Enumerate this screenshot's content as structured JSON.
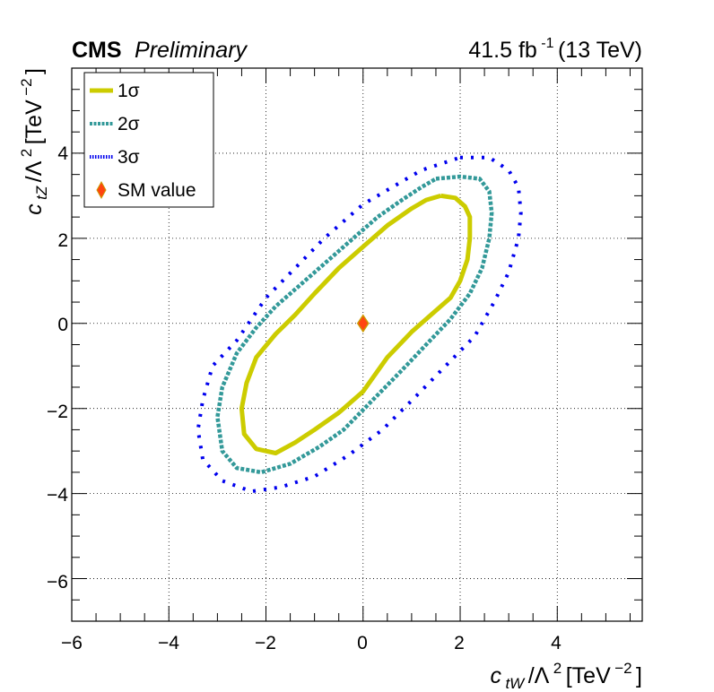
{
  "header": {
    "experiment": "CMS",
    "status": "Preliminary",
    "lumi_value": "41.5 fb",
    "lumi_exp": "-1",
    "energy": " (13 TeV)"
  },
  "axes": {
    "x_var": "c",
    "x_sub": "tW",
    "x_slash": "/Λ",
    "x_pow": "2",
    "x_unit": "[TeV",
    "x_unit_pow": "−2",
    "x_close": "]",
    "y_var": "c",
    "y_sub": "tZ",
    "y_slash": "/Λ",
    "y_pow": "2",
    "y_unit": "[TeV",
    "y_unit_pow": "−2",
    "y_close": "]"
  },
  "legend": {
    "items": [
      {
        "label": "1σ",
        "color": "#cccc00",
        "style": "solid"
      },
      {
        "label": "2σ",
        "color": "#339999",
        "style": "dashed"
      },
      {
        "label": "3σ",
        "color": "#0000ee",
        "style": "dotted"
      },
      {
        "label": "SM value",
        "color": "#ff4411",
        "style": "marker"
      }
    ],
    "placement": "top-left"
  },
  "chart_data": {
    "type": "scatter",
    "xlim": [
      -6,
      5.75
    ],
    "ylim": [
      -7,
      6
    ],
    "x_ticks": [
      -6,
      -4,
      -2,
      0,
      2,
      4
    ],
    "y_ticks": [
      -6,
      -4,
      -2,
      0,
      2,
      4
    ],
    "x_tick_labels": [
      "−6",
      "−4",
      "−2",
      "0",
      "2",
      "4"
    ],
    "y_tick_labels": [
      "−6",
      "−4",
      "−2",
      "0",
      "2",
      "4"
    ],
    "grid": true,
    "sm_point": {
      "x": 0,
      "y": 0
    },
    "series": [
      {
        "name": "1σ",
        "color": "#cccc00",
        "points": [
          [
            1.6,
            3.0
          ],
          [
            1.9,
            2.95
          ],
          [
            2.1,
            2.75
          ],
          [
            2.2,
            2.5
          ],
          [
            2.2,
            2.0
          ],
          [
            2.15,
            1.5
          ],
          [
            2.0,
            1.0
          ],
          [
            1.8,
            0.6
          ],
          [
            1.4,
            0.2
          ],
          [
            1.0,
            -0.2
          ],
          [
            0.5,
            -0.8
          ],
          [
            0.0,
            -1.6
          ],
          [
            -0.5,
            -2.1
          ],
          [
            -1.0,
            -2.5
          ],
          [
            -1.4,
            -2.8
          ],
          [
            -1.8,
            -3.05
          ],
          [
            -2.2,
            -2.95
          ],
          [
            -2.45,
            -2.6
          ],
          [
            -2.5,
            -2.0
          ],
          [
            -2.4,
            -1.4
          ],
          [
            -2.2,
            -0.8
          ],
          [
            -1.8,
            -0.25
          ],
          [
            -1.4,
            0.2
          ],
          [
            -1.0,
            0.7
          ],
          [
            -0.5,
            1.3
          ],
          [
            0.0,
            1.8
          ],
          [
            0.5,
            2.3
          ],
          [
            1.0,
            2.7
          ],
          [
            1.3,
            2.9
          ],
          [
            1.6,
            3.0
          ]
        ]
      },
      {
        "name": "2σ",
        "color": "#339999",
        "points": [
          [
            1.5,
            3.4
          ],
          [
            2.0,
            3.45
          ],
          [
            2.4,
            3.4
          ],
          [
            2.6,
            3.1
          ],
          [
            2.65,
            2.6
          ],
          [
            2.6,
            2.0
          ],
          [
            2.45,
            1.3
          ],
          [
            2.2,
            0.7
          ],
          [
            1.8,
            0.1
          ],
          [
            1.3,
            -0.5
          ],
          [
            0.8,
            -1.1
          ],
          [
            0.2,
            -1.8
          ],
          [
            -0.4,
            -2.5
          ],
          [
            -0.9,
            -2.9
          ],
          [
            -1.5,
            -3.3
          ],
          [
            -2.1,
            -3.5
          ],
          [
            -2.6,
            -3.4
          ],
          [
            -2.9,
            -3.0
          ],
          [
            -3.0,
            -2.2
          ],
          [
            -2.9,
            -1.5
          ],
          [
            -2.6,
            -0.7
          ],
          [
            -2.2,
            -0.1
          ],
          [
            -1.8,
            0.4
          ],
          [
            -1.3,
            0.9
          ],
          [
            -0.8,
            1.4
          ],
          [
            -0.2,
            2.0
          ],
          [
            0.3,
            2.5
          ],
          [
            0.8,
            2.9
          ],
          [
            1.2,
            3.2
          ],
          [
            1.5,
            3.4
          ]
        ]
      },
      {
        "name": "3σ",
        "color": "#0000ee",
        "points": [
          [
            2.0,
            3.9
          ],
          [
            2.6,
            3.9
          ],
          [
            3.0,
            3.6
          ],
          [
            3.2,
            3.2
          ],
          [
            3.25,
            2.6
          ],
          [
            3.2,
            2.0
          ],
          [
            3.0,
            1.2
          ],
          [
            2.7,
            0.5
          ],
          [
            2.3,
            -0.3
          ],
          [
            1.7,
            -1.0
          ],
          [
            1.1,
            -1.7
          ],
          [
            0.4,
            -2.5
          ],
          [
            -0.3,
            -3.1
          ],
          [
            -1.0,
            -3.6
          ],
          [
            -1.7,
            -3.85
          ],
          [
            -2.3,
            -3.95
          ],
          [
            -2.9,
            -3.7
          ],
          [
            -3.3,
            -3.2
          ],
          [
            -3.4,
            -2.5
          ],
          [
            -3.3,
            -1.8
          ],
          [
            -3.1,
            -1.0
          ],
          [
            -2.6,
            -0.4
          ],
          [
            -2.0,
            0.6
          ],
          [
            -1.4,
            1.3
          ],
          [
            -0.8,
            2.0
          ],
          [
            0.0,
            2.8
          ],
          [
            0.6,
            3.2
          ],
          [
            1.2,
            3.6
          ],
          [
            1.6,
            3.75
          ],
          [
            2.0,
            3.9
          ]
        ]
      }
    ]
  }
}
